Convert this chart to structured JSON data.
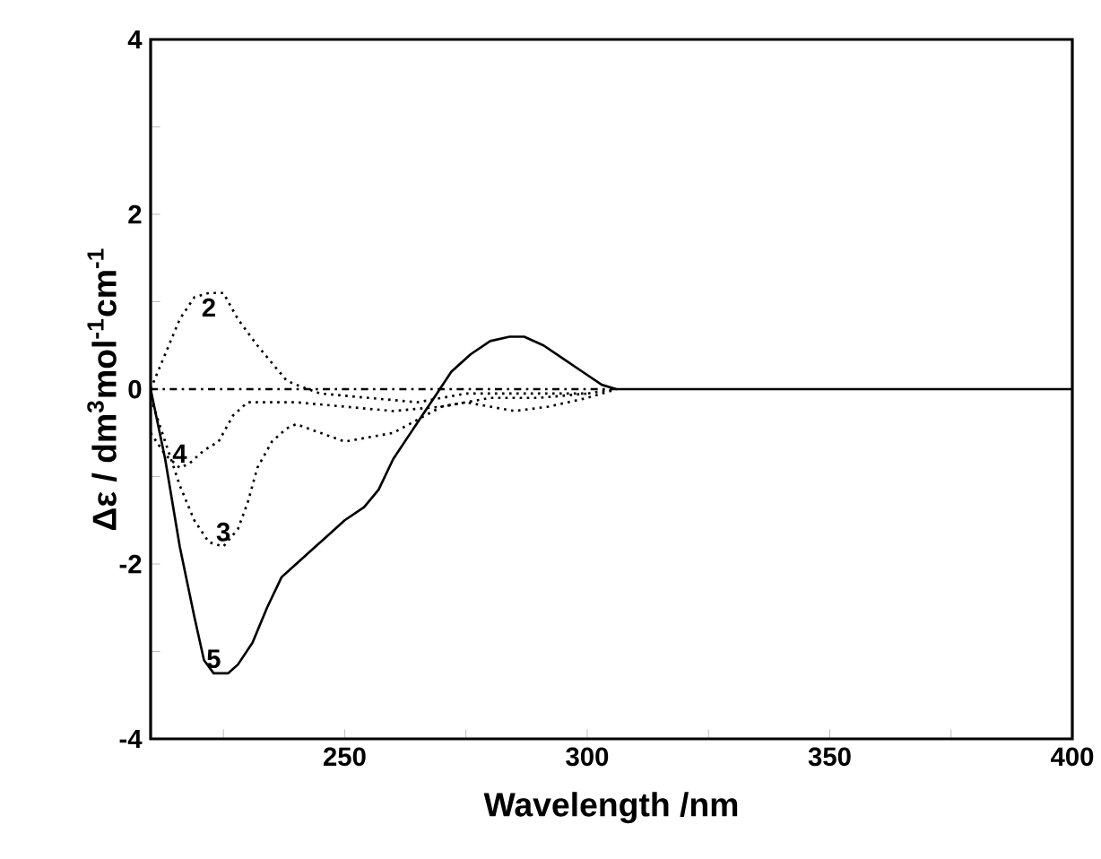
{
  "chart_data": {
    "type": "line",
    "xlabel": "Wavelength /nm",
    "ylabel": "Δε / dm$^{3}$mol$^{-1}$cm$^{-1}$",
    "xlim": [
      210,
      400
    ],
    "ylim": [
      -4,
      4
    ],
    "xticks": [
      {
        "value": 225,
        "label": null
      },
      250,
      {
        "value": 275,
        "label": null
      },
      300,
      {
        "value": 325,
        "label": null
      },
      350,
      {
        "value": 375,
        "label": null
      },
      400
    ],
    "yticks": [
      -4,
      {
        "value": -3,
        "label": null
      },
      -2,
      {
        "value": -1,
        "label": null
      },
      0,
      {
        "value": 1,
        "label": null
      },
      2,
      {
        "value": 3,
        "label": null
      },
      4
    ],
    "grid": false,
    "marker": "none",
    "series": [
      {
        "color": "#000000",
        "line_style": "dashdot",
        "x": [
          210,
          230,
          250,
          270,
          290,
          306
        ],
        "values": [
          0,
          0,
          0,
          0,
          0,
          0
        ]
      },
      {
        "name": "2",
        "color": "#000000",
        "line_style": "dotted",
        "x": [
          210,
          213,
          216,
          219,
          222,
          225,
          228,
          232,
          235,
          238,
          240,
          245,
          255,
          265,
          275,
          290,
          300,
          306
        ],
        "values": [
          0,
          0.4,
          0.8,
          1.05,
          1.1,
          1.1,
          0.8,
          0.5,
          0.3,
          0.1,
          0.05,
          -0.05,
          -0.1,
          -0.15,
          -0.05,
          -0.05,
          -0.05,
          0
        ]
      },
      {
        "name": "3",
        "color": "#000000",
        "line_style": "dotted",
        "x": [
          210,
          213,
          216,
          219,
          222,
          225,
          228,
          230,
          232,
          235,
          238,
          240,
          245,
          250,
          255,
          260,
          265,
          270,
          275,
          285,
          292,
          300,
          306
        ],
        "values": [
          -0.1,
          -0.6,
          -1.1,
          -1.5,
          -1.75,
          -1.8,
          -1.6,
          -1.3,
          -0.9,
          -0.6,
          -0.45,
          -0.4,
          -0.5,
          -0.6,
          -0.55,
          -0.5,
          -0.35,
          -0.2,
          -0.15,
          -0.25,
          -0.2,
          -0.1,
          0
        ]
      },
      {
        "name": "4",
        "color": "#000000",
        "line_style": "dotted",
        "x": [
          210,
          213,
          216,
          218,
          221,
          224,
          227,
          230,
          240,
          250,
          260,
          270,
          280,
          290,
          300
        ],
        "values": [
          -0.5,
          -0.75,
          -0.9,
          -0.85,
          -0.7,
          -0.6,
          -0.3,
          -0.15,
          -0.15,
          -0.2,
          -0.25,
          -0.2,
          -0.1,
          -0.1,
          -0.05
        ]
      },
      {
        "name": "5",
        "color": "#000000",
        "line_style": "solid",
        "x": [
          210,
          213,
          216,
          219,
          221,
          223,
          226,
          228,
          231,
          234,
          237,
          240,
          244,
          247,
          250,
          254,
          257,
          260,
          263,
          266,
          269,
          272,
          276,
          280,
          284,
          287,
          291,
          295,
          299,
          303,
          306,
          310,
          340,
          370,
          400
        ],
        "values": [
          0,
          -0.8,
          -1.8,
          -2.6,
          -3.1,
          -3.25,
          -3.25,
          -3.15,
          -2.9,
          -2.5,
          -2.15,
          -2.0,
          -1.8,
          -1.65,
          -1.5,
          -1.35,
          -1.15,
          -0.8,
          -0.55,
          -0.3,
          -0.05,
          0.2,
          0.4,
          0.55,
          0.6,
          0.6,
          0.5,
          0.35,
          0.2,
          0.05,
          0,
          0,
          0,
          0,
          0
        ]
      }
    ]
  }
}
